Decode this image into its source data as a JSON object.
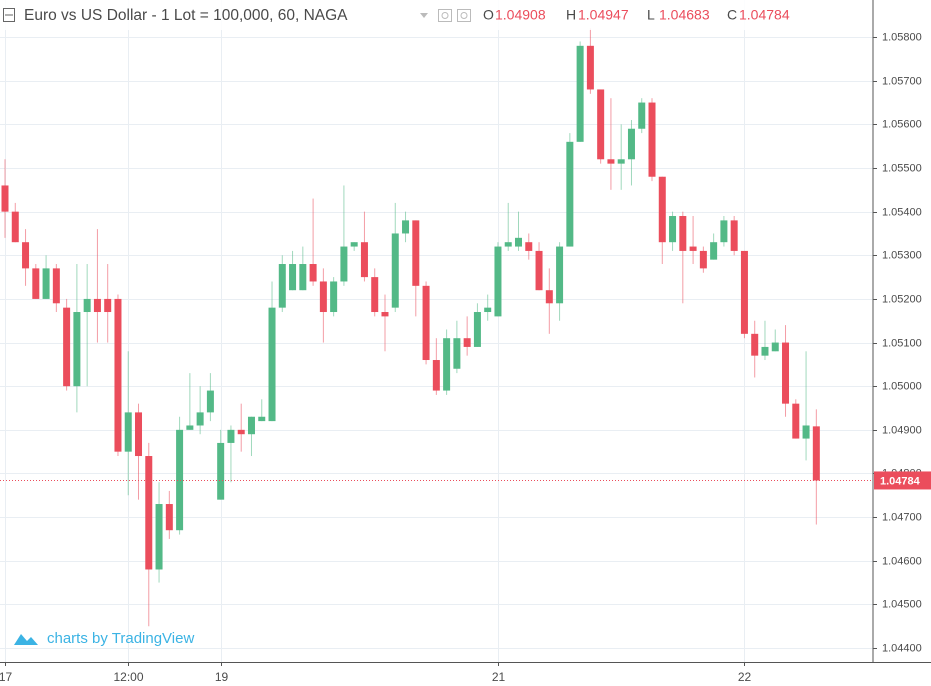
{
  "chart_data": {
    "type": "candlestick",
    "title": "Euro vs US Dollar - 1 Lot = 100,000, 60, NAGA",
    "ohlc_legend": [
      {
        "key": "O",
        "value": "1.04908"
      },
      {
        "key": "H",
        "value": "1.04947"
      },
      {
        "key": "L",
        "value": "1.04683"
      },
      {
        "key": "C",
        "value": "1.04784"
      }
    ],
    "last_price_label": "1.04784",
    "watermark": "charts by TradingView",
    "up_color": "#53b987",
    "down_color": "#eb4d5c",
    "grid": true,
    "categories": [
      "17",
      null,
      null,
      null,
      null,
      null,
      null,
      null,
      null,
      null,
      null,
      null,
      "12:00",
      null,
      null,
      null,
      null,
      null,
      null,
      null,
      null,
      "19",
      null,
      null,
      null,
      null,
      null,
      null,
      null,
      null,
      null,
      null,
      null,
      null,
      null,
      null,
      null,
      null,
      null,
      null,
      null,
      null,
      null,
      null,
      null,
      null,
      null,
      null,
      "21",
      null,
      null,
      null,
      null,
      null,
      null,
      null,
      null,
      null,
      null,
      null,
      null,
      null,
      null,
      null,
      null,
      null,
      null,
      null,
      null,
      null,
      null,
      null,
      "22",
      null,
      null,
      null,
      null,
      null,
      null,
      null
    ],
    "open": [
      1.0546,
      1.054,
      1.0533,
      1.0527,
      1.052,
      1.0527,
      1.0518,
      1.05,
      1.0517,
      1.052,
      1.052,
      1.052,
      1.0485,
      1.0494,
      1.0484,
      1.0458,
      1.0473,
      1.0467,
      1.049,
      1.0491,
      1.0494,
      1.0474,
      1.0487,
      1.049,
      1.0489,
      1.0492,
      1.0492,
      1.0518,
      1.0522,
      1.0522,
      1.0528,
      1.0524,
      1.0517,
      1.0524,
      1.0532,
      1.0533,
      1.0525,
      1.0517,
      1.0518,
      1.0535,
      1.0538,
      1.0523,
      1.0506,
      1.0499,
      1.0504,
      1.0511,
      1.0509,
      1.0517,
      1.0516,
      1.0532,
      1.0532,
      1.0533,
      1.0531,
      1.0522,
      1.0519,
      1.0532,
      1.0556,
      1.0578,
      1.0568,
      1.0552,
      1.0551,
      1.0552,
      1.0559,
      1.0565,
      1.0548,
      1.0533,
      1.0539,
      1.0532,
      1.0531,
      1.0529,
      1.0533,
      1.0538,
      1.0531,
      1.0512,
      1.0507,
      1.0508,
      1.051,
      1.0496,
      1.0488,
      1.04908
    ],
    "high": [
      1.0552,
      1.0542,
      1.0536,
      1.0528,
      1.053,
      1.0528,
      1.052,
      1.0528,
      1.0528,
      1.0536,
      1.0528,
      1.0521,
      1.0508,
      1.0496,
      1.0487,
      1.0478,
      1.0476,
      1.0493,
      1.0503,
      1.05,
      1.0503,
      1.049,
      1.0491,
      1.0496,
      1.0493,
      1.0497,
      1.0524,
      1.053,
      1.0531,
      1.0532,
      1.0543,
      1.0527,
      1.0525,
      1.0546,
      1.0533,
      1.054,
      1.0527,
      1.0521,
      1.0542,
      1.054,
      1.0538,
      1.0524,
      1.0511,
      1.0513,
      1.0515,
      1.0516,
      1.0519,
      1.0521,
      1.0533,
      1.0542,
      1.054,
      1.0535,
      1.0533,
      1.0527,
      1.0533,
      1.0558,
      1.0579,
      1.0582,
      1.0568,
      1.0566,
      1.056,
      1.0561,
      1.0566,
      1.0566,
      1.0548,
      1.054,
      1.054,
      1.0539,
      1.0532,
      1.0535,
      1.0539,
      1.0539,
      1.0531,
      1.0515,
      1.0515,
      1.0513,
      1.0514,
      1.0497,
      1.0508,
      1.04947
    ],
    "low": [
      1.0534,
      1.0533,
      1.0523,
      1.052,
      1.052,
      1.0517,
      1.0499,
      1.0494,
      1.05,
      1.051,
      1.051,
      1.0484,
      1.0475,
      1.0474,
      1.0445,
      1.0455,
      1.0465,
      1.0466,
      1.049,
      1.0489,
      1.0492,
      1.0474,
      1.0478,
      1.0485,
      1.0484,
      1.0492,
      1.0492,
      1.0517,
      1.0522,
      1.0522,
      1.0523,
      1.051,
      1.0516,
      1.0523,
      1.0531,
      1.0524,
      1.0516,
      1.0508,
      1.0517,
      1.0533,
      1.0516,
      1.0505,
      1.0498,
      1.0498,
      1.0503,
      1.0507,
      1.0509,
      1.0515,
      1.0516,
      1.0531,
      1.0531,
      1.0529,
      1.0522,
      1.0512,
      1.0515,
      1.0532,
      1.0556,
      1.0567,
      1.0551,
      1.0545,
      1.0545,
      1.0546,
      1.0558,
      1.0547,
      1.0528,
      1.0531,
      1.0519,
      1.0528,
      1.0526,
      1.0529,
      1.0532,
      1.053,
      1.0511,
      1.0502,
      1.0506,
      1.0508,
      1.0493,
      1.0488,
      1.0483,
      1.04683
    ],
    "close": [
      1.054,
      1.0533,
      1.0527,
      1.052,
      1.0527,
      1.0519,
      1.05,
      1.0517,
      1.052,
      1.0517,
      1.0517,
      1.0485,
      1.0494,
      1.0484,
      1.0458,
      1.0473,
      1.0467,
      1.049,
      1.0491,
      1.0494,
      1.0499,
      1.0487,
      1.049,
      1.0489,
      1.0493,
      1.0493,
      1.0518,
      1.0528,
      1.0528,
      1.0528,
      1.0524,
      1.0517,
      1.0524,
      1.0532,
      1.0533,
      1.0525,
      1.0517,
      1.0516,
      1.0535,
      1.0538,
      1.0523,
      1.0506,
      1.0499,
      1.0511,
      1.0511,
      1.0509,
      1.0517,
      1.0518,
      1.0532,
      1.0533,
      1.0534,
      1.0531,
      1.0522,
      1.0519,
      1.0532,
      1.0556,
      1.0578,
      1.0568,
      1.0552,
      1.0551,
      1.0552,
      1.0559,
      1.0565,
      1.0548,
      1.0533,
      1.0539,
      1.0531,
      1.0531,
      1.0527,
      1.0533,
      1.0538,
      1.0531,
      1.0512,
      1.0507,
      1.0509,
      1.051,
      1.0496,
      1.0488,
      1.0491,
      1.04784
    ],
    "ylim": [
      1.04368,
      1.05885
    ],
    "yticks": [
      {
        "value": 1.044,
        "label": "1.04400"
      },
      {
        "value": 1.045,
        "label": "1.04500"
      },
      {
        "value": 1.046,
        "label": "1.04600"
      },
      {
        "value": 1.047,
        "label": "1.04700"
      },
      {
        "value": 1.048,
        "label": "1.04800"
      },
      {
        "value": 1.049,
        "label": "1.04900"
      },
      {
        "value": 1.05,
        "label": "1.05000"
      },
      {
        "value": 1.051,
        "label": "1.05100"
      },
      {
        "value": 1.052,
        "label": "1.05200"
      },
      {
        "value": 1.053,
        "label": "1.05300"
      },
      {
        "value": 1.054,
        "label": "1.05400"
      },
      {
        "value": 1.055,
        "label": "1.05500"
      },
      {
        "value": 1.056,
        "label": "1.05600"
      },
      {
        "value": 1.057,
        "label": "1.05700"
      },
      {
        "value": 1.058,
        "label": "1.05800"
      }
    ]
  }
}
